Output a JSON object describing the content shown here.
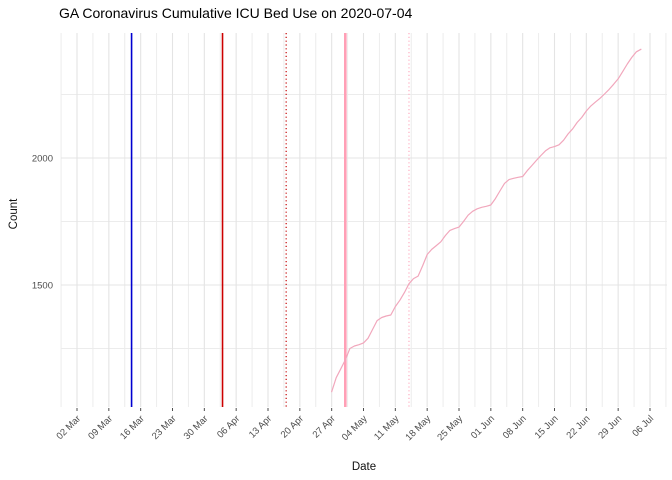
{
  "chart_data": {
    "type": "line",
    "title": "GA Coronavirus Cumulative ICU Bed Use on 2020-07-04",
    "xlabel": "Date",
    "ylabel": "Count",
    "grid": true,
    "legend": "none",
    "x_range": [
      "2020-02-27",
      "2020-07-09"
    ],
    "y_range": [
      1020,
      2492
    ],
    "x_ticks": [
      {
        "value": "2020-03-02",
        "label": "02 Mar"
      },
      {
        "value": "2020-03-09",
        "label": "09 Mar"
      },
      {
        "value": "2020-03-16",
        "label": "16 Mar"
      },
      {
        "value": "2020-03-23",
        "label": "23 Mar"
      },
      {
        "value": "2020-03-30",
        "label": "30 Mar"
      },
      {
        "value": "2020-04-06",
        "label": "06 Apr"
      },
      {
        "value": "2020-04-13",
        "label": "13 Apr"
      },
      {
        "value": "2020-04-20",
        "label": "20 Apr"
      },
      {
        "value": "2020-04-27",
        "label": "27 Apr"
      },
      {
        "value": "2020-05-04",
        "label": "04 May"
      },
      {
        "value": "2020-05-11",
        "label": "11 May"
      },
      {
        "value": "2020-05-18",
        "label": "18 May"
      },
      {
        "value": "2020-05-25",
        "label": "25 May"
      },
      {
        "value": "2020-06-01",
        "label": "01 Jun"
      },
      {
        "value": "2020-06-08",
        "label": "08 Jun"
      },
      {
        "value": "2020-06-15",
        "label": "15 Jun"
      },
      {
        "value": "2020-06-22",
        "label": "22 Jun"
      },
      {
        "value": "2020-06-29",
        "label": "29 Jun"
      },
      {
        "value": "2020-07-06",
        "label": "06 Jul"
      }
    ],
    "y_ticks": [
      {
        "value": 1500,
        "label": "1500"
      },
      {
        "value": 2000,
        "label": "2000"
      }
    ],
    "y_minor_ticks": [
      1250,
      1750,
      2250
    ],
    "vlines": [
      {
        "date": "2020-03-14",
        "style": "solid",
        "color": "#0000D0",
        "width": 1.6
      },
      {
        "date": "2020-04-03",
        "style": "solid",
        "color": "#CC0000",
        "width": 1.6
      },
      {
        "date": "2020-04-17",
        "style": "dotted",
        "color": "#CC2A2A",
        "width": 1.4
      },
      {
        "date": "2020-04-30",
        "style": "solid",
        "color": "#FF9FB6",
        "width": 2.6
      },
      {
        "date": "2020-05-14",
        "style": "dotted",
        "color": "#FFB9CA",
        "width": 1.4
      }
    ],
    "series": [
      {
        "name": "cumulative-icu-bed-use",
        "color": "#F1A7BC",
        "width": 1.2,
        "points": [
          [
            "2020-04-27",
            1080
          ],
          [
            "2020-04-28",
            1135
          ],
          [
            "2020-04-29",
            1170
          ],
          [
            "2020-04-30",
            1205
          ],
          [
            "2020-05-01",
            1250
          ],
          [
            "2020-05-02",
            1260
          ],
          [
            "2020-05-03",
            1265
          ],
          [
            "2020-05-04",
            1272
          ],
          [
            "2020-05-05",
            1290
          ],
          [
            "2020-05-06",
            1325
          ],
          [
            "2020-05-07",
            1360
          ],
          [
            "2020-05-08",
            1372
          ],
          [
            "2020-05-09",
            1378
          ],
          [
            "2020-05-10",
            1382
          ],
          [
            "2020-05-11",
            1415
          ],
          [
            "2020-05-12",
            1440
          ],
          [
            "2020-05-13",
            1470
          ],
          [
            "2020-05-14",
            1505
          ],
          [
            "2020-05-15",
            1525
          ],
          [
            "2020-05-16",
            1535
          ],
          [
            "2020-05-17",
            1575
          ],
          [
            "2020-05-18",
            1620
          ],
          [
            "2020-05-19",
            1640
          ],
          [
            "2020-05-20",
            1655
          ],
          [
            "2020-05-21",
            1670
          ],
          [
            "2020-05-22",
            1695
          ],
          [
            "2020-05-23",
            1715
          ],
          [
            "2020-05-24",
            1722
          ],
          [
            "2020-05-25",
            1728
          ],
          [
            "2020-05-26",
            1750
          ],
          [
            "2020-05-27",
            1775
          ],
          [
            "2020-05-28",
            1790
          ],
          [
            "2020-05-29",
            1800
          ],
          [
            "2020-05-30",
            1806
          ],
          [
            "2020-05-31",
            1810
          ],
          [
            "2020-06-01",
            1815
          ],
          [
            "2020-06-02",
            1840
          ],
          [
            "2020-06-03",
            1870
          ],
          [
            "2020-06-04",
            1900
          ],
          [
            "2020-06-05",
            1915
          ],
          [
            "2020-06-06",
            1920
          ],
          [
            "2020-06-07",
            1924
          ],
          [
            "2020-06-08",
            1927
          ],
          [
            "2020-06-09",
            1950
          ],
          [
            "2020-06-10",
            1970
          ],
          [
            "2020-06-11",
            1990
          ],
          [
            "2020-06-12",
            2010
          ],
          [
            "2020-06-13",
            2028
          ],
          [
            "2020-06-14",
            2040
          ],
          [
            "2020-06-15",
            2045
          ],
          [
            "2020-06-16",
            2052
          ],
          [
            "2020-06-17",
            2070
          ],
          [
            "2020-06-18",
            2095
          ],
          [
            "2020-06-19",
            2115
          ],
          [
            "2020-06-20",
            2140
          ],
          [
            "2020-06-21",
            2160
          ],
          [
            "2020-06-22",
            2185
          ],
          [
            "2020-06-23",
            2205
          ],
          [
            "2020-06-24",
            2220
          ],
          [
            "2020-06-25",
            2235
          ],
          [
            "2020-06-26",
            2252
          ],
          [
            "2020-06-27",
            2270
          ],
          [
            "2020-06-28",
            2290
          ],
          [
            "2020-06-29",
            2312
          ],
          [
            "2020-06-30",
            2340
          ],
          [
            "2020-07-01",
            2370
          ],
          [
            "2020-07-02",
            2396
          ],
          [
            "2020-07-03",
            2418
          ],
          [
            "2020-07-04",
            2428
          ]
        ]
      }
    ],
    "colors": {
      "grid_major": "#E4E4E4",
      "grid_minor": "#ECECEC",
      "axis_text": "#4D4D4D",
      "tick_mark": "#4D4D4D",
      "title_text": "#000000"
    }
  }
}
